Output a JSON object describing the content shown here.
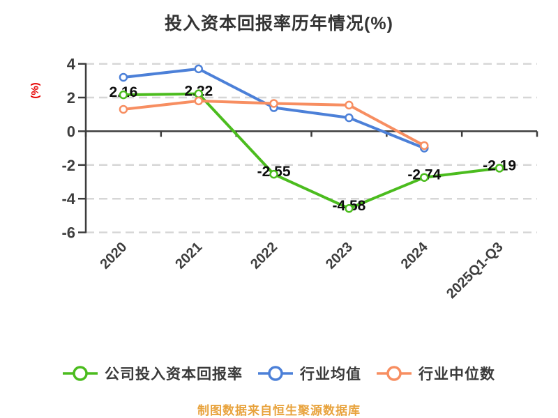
{
  "title": "投入资本回报率历年情况(%)",
  "footer": "制图数据来自恒生聚源数据库",
  "colors": {
    "title_text": "#333333",
    "axis_line": "#3c3c3c",
    "tick_label": "#3d3d3d",
    "grid_line": "#d6d6d6",
    "y_axis_name": "#e60000",
    "data_label": "#0d0d0d",
    "footer_text": "#e8a33d"
  },
  "chart_data": {
    "type": "line",
    "title": "投入资本回报率历年情况(%)",
    "xlabel": "",
    "ylabel": "(%)",
    "categories": [
      "2020",
      "2021",
      "2022",
      "2023",
      "2024",
      "2025Q1-Q3"
    ],
    "series": [
      {
        "name": "公司投入资本回报率",
        "color": "#4bbc1e",
        "values": [
          2.16,
          2.22,
          -2.55,
          -4.58,
          -2.74,
          -2.19
        ],
        "data_labels": [
          "2.16",
          "2.22",
          "-2.55",
          "-4.58",
          "-2.74",
          "-2.19"
        ]
      },
      {
        "name": "行业均值",
        "color": "#4c80d8",
        "values": [
          3.2,
          3.7,
          1.4,
          0.8,
          -1.0,
          null
        ],
        "data_labels": null
      },
      {
        "name": "行业中位数",
        "color": "#f78e61",
        "values": [
          1.3,
          1.8,
          1.65,
          1.55,
          -0.85,
          null
        ],
        "data_labels": null
      }
    ],
    "ylim": [
      -6,
      4
    ],
    "yticks": [
      4,
      2,
      0,
      -2,
      -4,
      -6
    ],
    "grid": "horizontal dashed",
    "legend_position": "bottom",
    "marker": "circle-white-fill"
  }
}
